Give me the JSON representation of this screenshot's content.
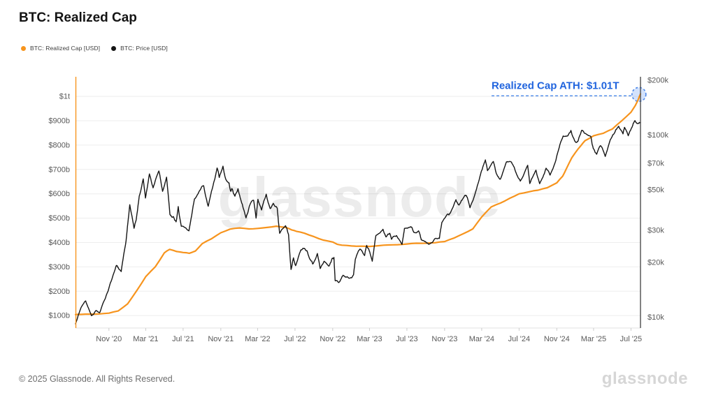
{
  "header": {
    "title": "BTC: Realized Cap"
  },
  "legend": {
    "items": [
      {
        "label": "BTC: Realized Cap [USD]",
        "color": "#F7941D"
      },
      {
        "label": "BTC: Price [USD]",
        "color": "#151515"
      }
    ]
  },
  "footer": {
    "copyright": "© 2025 Glassnode. All Rights Reserved.",
    "logo_text": "glassnode"
  },
  "chart_data": {
    "type": "line",
    "title": "BTC: Realized Cap",
    "watermark": "glassnode",
    "x_domain": [
      "2020-07-15",
      "2025-08-01"
    ],
    "x_ticks": [
      {
        "label": "Nov '20",
        "date": "2020-11-01"
      },
      {
        "label": "Mar '21",
        "date": "2021-03-01"
      },
      {
        "label": "Jul '21",
        "date": "2021-07-01"
      },
      {
        "label": "Nov '21",
        "date": "2021-11-01"
      },
      {
        "label": "Mar '22",
        "date": "2022-03-01"
      },
      {
        "label": "Jul '22",
        "date": "2022-07-01"
      },
      {
        "label": "Nov '22",
        "date": "2022-11-01"
      },
      {
        "label": "Mar '23",
        "date": "2023-03-01"
      },
      {
        "label": "Jul '23",
        "date": "2023-07-01"
      },
      {
        "label": "Nov '23",
        "date": "2023-11-01"
      },
      {
        "label": "Mar '24",
        "date": "2024-03-01"
      },
      {
        "label": "Jul '24",
        "date": "2024-07-01"
      },
      {
        "label": "Nov '24",
        "date": "2024-11-01"
      },
      {
        "label": "Mar '25",
        "date": "2025-03-01"
      },
      {
        "label": "Jul '25",
        "date": "2025-07-01"
      }
    ],
    "left_axis": {
      "unit": "USD billions",
      "scale": "linear",
      "range": [
        100,
        1000
      ],
      "ticks": [
        {
          "label": "$1t",
          "value": 1000
        },
        {
          "label": "$900b",
          "value": 900
        },
        {
          "label": "$800b",
          "value": 800
        },
        {
          "label": "$700b",
          "value": 700
        },
        {
          "label": "$600b",
          "value": 600
        },
        {
          "label": "$500b",
          "value": 500
        },
        {
          "label": "$400b",
          "value": 400
        },
        {
          "label": "$300b",
          "value": 300
        },
        {
          "label": "$200b",
          "value": 200
        },
        {
          "label": "$100b",
          "value": 100
        }
      ]
    },
    "right_axis": {
      "unit": "USD",
      "scale": "log",
      "range": [
        9000,
        210000
      ],
      "ticks": [
        {
          "label": "$200k",
          "value": 200000
        },
        {
          "label": "$100k",
          "value": 100000
        },
        {
          "label": "$70k",
          "value": 70000
        },
        {
          "label": "$50k",
          "value": 50000
        },
        {
          "label": "$30k",
          "value": 30000
        },
        {
          "label": "$20k",
          "value": 20000
        },
        {
          "label": "$10k",
          "value": 10000
        }
      ]
    },
    "annotation": {
      "label": "Realized Cap ATH: $1.01T",
      "color": "#2064DE",
      "point_date": "2025-07-27",
      "point_value": 1008
    },
    "series": [
      {
        "name": "BTC: Realized Cap [USD]",
        "axis": "left",
        "color": "#F7941D",
        "unit": "$B",
        "points": [
          [
            "2020-07-15",
            104
          ],
          [
            "2020-08-01",
            105
          ],
          [
            "2020-09-01",
            106
          ],
          [
            "2020-10-01",
            107
          ],
          [
            "2020-11-01",
            110
          ],
          [
            "2020-12-01",
            119
          ],
          [
            "2021-01-01",
            148
          ],
          [
            "2021-02-01",
            205
          ],
          [
            "2021-03-01",
            260
          ],
          [
            "2021-04-01",
            300
          ],
          [
            "2021-05-01",
            358
          ],
          [
            "2021-05-18",
            372
          ],
          [
            "2021-06-10",
            363
          ],
          [
            "2021-07-01",
            359
          ],
          [
            "2021-07-21",
            356
          ],
          [
            "2021-08-10",
            365
          ],
          [
            "2021-09-01",
            395
          ],
          [
            "2021-10-01",
            415
          ],
          [
            "2021-11-01",
            440
          ],
          [
            "2021-12-01",
            455
          ],
          [
            "2022-01-01",
            460
          ],
          [
            "2022-02-01",
            456
          ],
          [
            "2022-03-01",
            458
          ],
          [
            "2022-04-01",
            462
          ],
          [
            "2022-05-01",
            467
          ],
          [
            "2022-06-01",
            462
          ],
          [
            "2022-06-20",
            452
          ],
          [
            "2022-07-05",
            446
          ],
          [
            "2022-08-01",
            438
          ],
          [
            "2022-09-01",
            424
          ],
          [
            "2022-10-01",
            410
          ],
          [
            "2022-11-01",
            402
          ],
          [
            "2022-11-15",
            393
          ],
          [
            "2022-12-01",
            389
          ],
          [
            "2023-01-01",
            386
          ],
          [
            "2023-02-01",
            385
          ],
          [
            "2023-03-01",
            384
          ],
          [
            "2023-04-01",
            387
          ],
          [
            "2023-05-01",
            390
          ],
          [
            "2023-06-01",
            391
          ],
          [
            "2023-07-01",
            394
          ],
          [
            "2023-08-01",
            397
          ],
          [
            "2023-09-01",
            397
          ],
          [
            "2023-10-01",
            399
          ],
          [
            "2023-11-01",
            404
          ],
          [
            "2023-12-01",
            418
          ],
          [
            "2024-01-01",
            436
          ],
          [
            "2024-02-01",
            456
          ],
          [
            "2024-03-01",
            505
          ],
          [
            "2024-04-01",
            546
          ],
          [
            "2024-05-01",
            562
          ],
          [
            "2024-06-01",
            582
          ],
          [
            "2024-07-01",
            600
          ],
          [
            "2024-08-01",
            608
          ],
          [
            "2024-09-01",
            615
          ],
          [
            "2024-10-01",
            625
          ],
          [
            "2024-11-01",
            645
          ],
          [
            "2024-11-20",
            672
          ],
          [
            "2024-12-01",
            700
          ],
          [
            "2024-12-20",
            748
          ],
          [
            "2025-01-01",
            770
          ],
          [
            "2025-01-20",
            800
          ],
          [
            "2025-02-01",
            818
          ],
          [
            "2025-03-01",
            838
          ],
          [
            "2025-04-01",
            848
          ],
          [
            "2025-05-01",
            866
          ],
          [
            "2025-06-01",
            900
          ],
          [
            "2025-07-01",
            935
          ],
          [
            "2025-07-15",
            962
          ],
          [
            "2025-07-24",
            985
          ],
          [
            "2025-08-01",
            1010
          ]
        ]
      },
      {
        "name": "BTC: Price [USD]",
        "axis": "right",
        "color": "#151515",
        "unit": "$",
        "points": [
          [
            "2020-07-15",
            9200
          ],
          [
            "2020-08-02",
            11300
          ],
          [
            "2020-08-17",
            12300
          ],
          [
            "2020-09-05",
            10200
          ],
          [
            "2020-09-20",
            10900
          ],
          [
            "2020-10-02",
            10600
          ],
          [
            "2020-10-21",
            12800
          ],
          [
            "2020-11-06",
            15500
          ],
          [
            "2020-11-24",
            19100
          ],
          [
            "2020-12-01",
            18800
          ],
          [
            "2020-12-11",
            17800
          ],
          [
            "2020-12-27",
            26300
          ],
          [
            "2021-01-08",
            41500
          ],
          [
            "2021-01-22",
            30800
          ],
          [
            "2021-01-29",
            34300
          ],
          [
            "2021-02-08",
            46400
          ],
          [
            "2021-02-21",
            57500
          ],
          [
            "2021-02-28",
            45100
          ],
          [
            "2021-03-13",
            61200
          ],
          [
            "2021-03-25",
            51300
          ],
          [
            "2021-04-13",
            63500
          ],
          [
            "2021-04-25",
            49100
          ],
          [
            "2021-05-08",
            58800
          ],
          [
            "2021-05-19",
            36700
          ],
          [
            "2021-05-30",
            35700
          ],
          [
            "2021-06-08",
            33400
          ],
          [
            "2021-06-15",
            40500
          ],
          [
            "2021-06-25",
            31600
          ],
          [
            "2021-07-20",
            29800
          ],
          [
            "2021-08-07",
            44600
          ],
          [
            "2021-08-23",
            49300
          ],
          [
            "2021-09-06",
            52700
          ],
          [
            "2021-09-21",
            40700
          ],
          [
            "2021-10-05",
            51500
          ],
          [
            "2021-10-20",
            66000
          ],
          [
            "2021-10-27",
            58500
          ],
          [
            "2021-11-08",
            67500
          ],
          [
            "2021-11-18",
            56900
          ],
          [
            "2021-11-28",
            54700
          ],
          [
            "2021-12-03",
            49200
          ],
          [
            "2021-12-08",
            50700
          ],
          [
            "2021-12-17",
            46200
          ],
          [
            "2021-12-27",
            50800
          ],
          [
            "2022-01-10",
            41800
          ],
          [
            "2022-01-22",
            35100
          ],
          [
            "2022-02-04",
            41500
          ],
          [
            "2022-02-16",
            43900
          ],
          [
            "2022-02-24",
            35000
          ],
          [
            "2022-03-02",
            44400
          ],
          [
            "2022-03-14",
            38800
          ],
          [
            "2022-03-29",
            47400
          ],
          [
            "2022-04-11",
            39500
          ],
          [
            "2022-04-21",
            42200
          ],
          [
            "2022-05-04",
            39700
          ],
          [
            "2022-05-12",
            28900
          ],
          [
            "2022-05-31",
            31800
          ],
          [
            "2022-06-10",
            28400
          ],
          [
            "2022-06-18",
            18300
          ],
          [
            "2022-06-26",
            21200
          ],
          [
            "2022-07-03",
            19200
          ],
          [
            "2022-07-20",
            23400
          ],
          [
            "2022-07-30",
            23800
          ],
          [
            "2022-08-09",
            23200
          ],
          [
            "2022-08-19",
            20800
          ],
          [
            "2022-08-28",
            19600
          ],
          [
            "2022-09-12",
            22400
          ],
          [
            "2022-09-21",
            18500
          ],
          [
            "2022-10-04",
            20300
          ],
          [
            "2022-10-20",
            19100
          ],
          [
            "2022-10-29",
            20800
          ],
          [
            "2022-11-05",
            21300
          ],
          [
            "2022-11-09",
            15900
          ],
          [
            "2022-11-21",
            15500
          ],
          [
            "2022-12-05",
            17000
          ],
          [
            "2022-12-18",
            16700
          ],
          [
            "2022-12-30",
            16500
          ],
          [
            "2023-01-08",
            17100
          ],
          [
            "2023-01-14",
            20900
          ],
          [
            "2023-01-29",
            23700
          ],
          [
            "2023-02-13",
            21800
          ],
          [
            "2023-02-20",
            24800
          ],
          [
            "2023-02-27",
            23500
          ],
          [
            "2023-03-10",
            20300
          ],
          [
            "2023-03-22",
            28100
          ],
          [
            "2023-04-14",
            30400
          ],
          [
            "2023-04-24",
            27600
          ],
          [
            "2023-05-06",
            28900
          ],
          [
            "2023-05-12",
            26800
          ],
          [
            "2023-05-28",
            28100
          ],
          [
            "2023-06-15",
            25100
          ],
          [
            "2023-06-23",
            30700
          ],
          [
            "2023-07-13",
            31400
          ],
          [
            "2023-07-24",
            29200
          ],
          [
            "2023-08-08",
            29800
          ],
          [
            "2023-08-17",
            26600
          ],
          [
            "2023-09-01",
            25900
          ],
          [
            "2023-09-11",
            25200
          ],
          [
            "2023-09-30",
            27000
          ],
          [
            "2023-10-15",
            27100
          ],
          [
            "2023-10-23",
            33100
          ],
          [
            "2023-11-09",
            36700
          ],
          [
            "2023-11-20",
            37400
          ],
          [
            "2023-12-08",
            44200
          ],
          [
            "2023-12-18",
            41300
          ],
          [
            "2024-01-02",
            45400
          ],
          [
            "2024-01-11",
            46600
          ],
          [
            "2024-01-23",
            39900
          ],
          [
            "2024-02-12",
            49900
          ],
          [
            "2024-02-28",
            62500
          ],
          [
            "2024-03-13",
            73100
          ],
          [
            "2024-03-20",
            63800
          ],
          [
            "2024-04-08",
            71600
          ],
          [
            "2024-04-18",
            61300
          ],
          [
            "2024-05-01",
            57300
          ],
          [
            "2024-05-21",
            71400
          ],
          [
            "2024-06-06",
            71100
          ],
          [
            "2024-06-24",
            60300
          ],
          [
            "2024-07-05",
            55900
          ],
          [
            "2024-07-29",
            68300
          ],
          [
            "2024-08-05",
            54200
          ],
          [
            "2024-08-25",
            64200
          ],
          [
            "2024-09-06",
            54100
          ],
          [
            "2024-09-27",
            65800
          ],
          [
            "2024-10-10",
            60300
          ],
          [
            "2024-10-29",
            72700
          ],
          [
            "2024-11-11",
            88700
          ],
          [
            "2024-11-22",
            98900
          ],
          [
            "2024-12-05",
            98800
          ],
          [
            "2024-12-17",
            106100
          ],
          [
            "2024-12-30",
            92600
          ],
          [
            "2025-01-09",
            92500
          ],
          [
            "2025-01-21",
            106100
          ],
          [
            "2025-01-31",
            102400
          ],
          [
            "2025-02-20",
            98300
          ],
          [
            "2025-02-28",
            84300
          ],
          [
            "2025-03-11",
            78500
          ],
          [
            "2025-03-24",
            87500
          ],
          [
            "2025-04-08",
            76300
          ],
          [
            "2025-04-25",
            94700
          ],
          [
            "2025-05-10",
            104100
          ],
          [
            "2025-05-22",
            111700
          ],
          [
            "2025-06-05",
            101600
          ],
          [
            "2025-06-10",
            110300
          ],
          [
            "2025-06-22",
            99200
          ],
          [
            "2025-07-03",
            109600
          ],
          [
            "2025-07-14",
            120100
          ],
          [
            "2025-07-25",
            115800
          ],
          [
            "2025-08-01",
            117500
          ]
        ]
      }
    ]
  }
}
